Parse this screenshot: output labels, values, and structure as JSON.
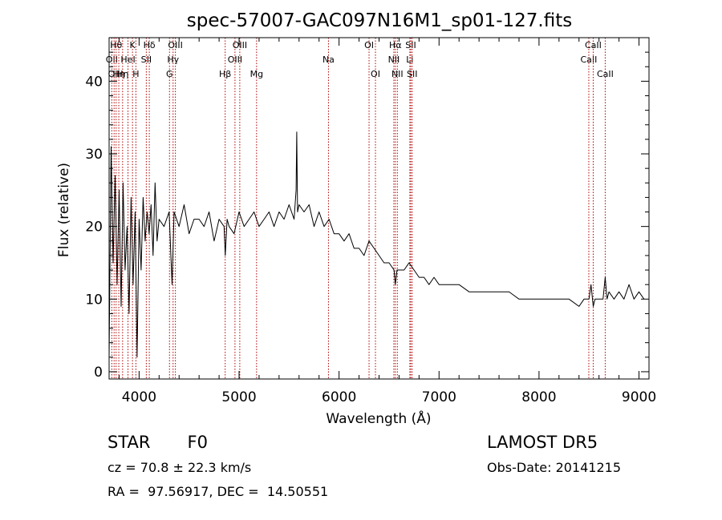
{
  "chart_data": {
    "type": "line",
    "title": "spec-57007-GAC097N16M1_sp01-127.fits",
    "xlabel": "Wavelength (Å)",
    "ylabel": "Flux (relative)",
    "xlim": [
      3700,
      9100
    ],
    "ylim": [
      -1,
      46
    ],
    "xticks": [
      4000,
      5000,
      6000,
      7000,
      8000,
      9000
    ],
    "yticks": [
      0,
      10,
      20,
      30,
      40
    ],
    "grid": false,
    "series": [
      {
        "color": "#000000",
        "x": [
          3700,
          3720,
          3740,
          3760,
          3780,
          3800,
          3820,
          3840,
          3860,
          3880,
          3900,
          3920,
          3940,
          3960,
          3980,
          4000,
          4020,
          4040,
          4060,
          4080,
          4100,
          4120,
          4140,
          4160,
          4180,
          4200,
          4250,
          4300,
          4330,
          4350,
          4400,
          4450,
          4500,
          4550,
          4600,
          4650,
          4700,
          4750,
          4800,
          4850,
          4862,
          4880,
          4900,
          4950,
          5000,
          5050,
          5100,
          5150,
          5200,
          5250,
          5300,
          5350,
          5400,
          5450,
          5500,
          5550,
          5570,
          5577,
          5585,
          5600,
          5650,
          5700,
          5750,
          5800,
          5850,
          5900,
          5950,
          6000,
          6050,
          6100,
          6150,
          6200,
          6250,
          6300,
          6350,
          6400,
          6450,
          6500,
          6550,
          6563,
          6580,
          6600,
          6650,
          6700,
          6750,
          6800,
          6850,
          6900,
          6950,
          7000,
          7100,
          7200,
          7300,
          7400,
          7500,
          7600,
          7700,
          7800,
          7900,
          8000,
          8100,
          8200,
          8300,
          8400,
          8450,
          8500,
          8520,
          8542,
          8560,
          8600,
          8640,
          8662,
          8680,
          8700,
          8750,
          8800,
          8850,
          8900,
          8950,
          9000,
          9050
        ],
        "y": [
          2,
          31,
          15,
          27,
          12,
          25,
          9,
          26,
          14,
          20,
          8,
          24,
          12,
          22,
          2,
          21,
          14,
          24,
          18,
          22,
          19,
          23,
          16,
          26,
          18,
          21,
          20,
          22,
          12,
          22,
          20,
          23,
          19,
          21,
          21,
          20,
          22,
          18,
          21,
          20,
          16,
          21,
          20,
          19,
          22,
          20,
          21,
          22,
          20,
          21,
          22,
          20,
          22,
          21,
          23,
          21,
          25,
          33,
          22,
          23,
          22,
          23,
          20,
          22,
          20,
          21,
          19,
          19,
          18,
          19,
          17,
          17,
          16,
          18,
          17,
          16,
          15,
          15,
          14,
          12,
          14,
          14,
          14,
          15,
          14,
          13,
          13,
          12,
          13,
          12,
          12,
          12,
          11,
          11,
          11,
          11,
          11,
          10,
          10,
          10,
          10,
          10,
          10,
          9,
          10,
          10,
          12,
          9,
          10,
          10,
          10,
          13,
          10,
          11,
          10,
          11,
          10,
          12,
          10,
          11,
          10
        ]
      }
    ],
    "lines": [
      {
        "w": 3727,
        "label": "OII",
        "row": 2
      },
      {
        "w": 3750,
        "label": "OII",
        "row": 3
      },
      {
        "w": 3770,
        "label": "Hθ",
        "row": 1
      },
      {
        "w": 3797,
        "label": "Hη",
        "row": 3
      },
      {
        "w": 3835,
        "label": "Hη",
        "row": 3
      },
      {
        "w": 3889,
        "label": "HeI",
        "row": 2
      },
      {
        "w": 3934,
        "label": "K",
        "row": 1
      },
      {
        "w": 3968,
        "label": "H",
        "row": 3
      },
      {
        "w": 4072,
        "label": "SII",
        "row": 2
      },
      {
        "w": 4102,
        "label": "Hδ",
        "row": 1
      },
      {
        "w": 4304,
        "label": "G",
        "row": 3
      },
      {
        "w": 4340,
        "label": "Hγ",
        "row": 2
      },
      {
        "w": 4363,
        "label": "OIII",
        "row": 1
      },
      {
        "w": 4861,
        "label": "Hβ",
        "row": 3
      },
      {
        "w": 4959,
        "label": "OIII",
        "row": 2
      },
      {
        "w": 5007,
        "label": "OIII",
        "row": 1
      },
      {
        "w": 5175,
        "label": "Mg",
        "row": 3
      },
      {
        "w": 5894,
        "label": "Na",
        "row": 2
      },
      {
        "w": 6300,
        "label": "OI",
        "row": 1
      },
      {
        "w": 6364,
        "label": "OI",
        "row": 3
      },
      {
        "w": 6548,
        "label": "NII",
        "row": 2
      },
      {
        "w": 6563,
        "label": "Hα",
        "row": 1
      },
      {
        "w": 6583,
        "label": "NII",
        "row": 3
      },
      {
        "w": 6708,
        "label": "Li",
        "row": 2
      },
      {
        "w": 6717,
        "label": "SII",
        "row": 1
      },
      {
        "w": 6731,
        "label": "SII",
        "row": 3
      },
      {
        "w": 8498,
        "label": "CaII",
        "row": 2
      },
      {
        "w": 8542,
        "label": "CaII",
        "row": 1
      },
      {
        "w": 8662,
        "label": "CaII",
        "row": 3
      }
    ]
  },
  "info": {
    "class": "STAR",
    "subclass": "F0",
    "cz": "cz = 70.8 ± 22.3 km/s",
    "radec": "RA =  97.56917, DEC =  14.50551",
    "survey": "LAMOST DR5",
    "obs_date": "Obs-Date: 20141215"
  }
}
